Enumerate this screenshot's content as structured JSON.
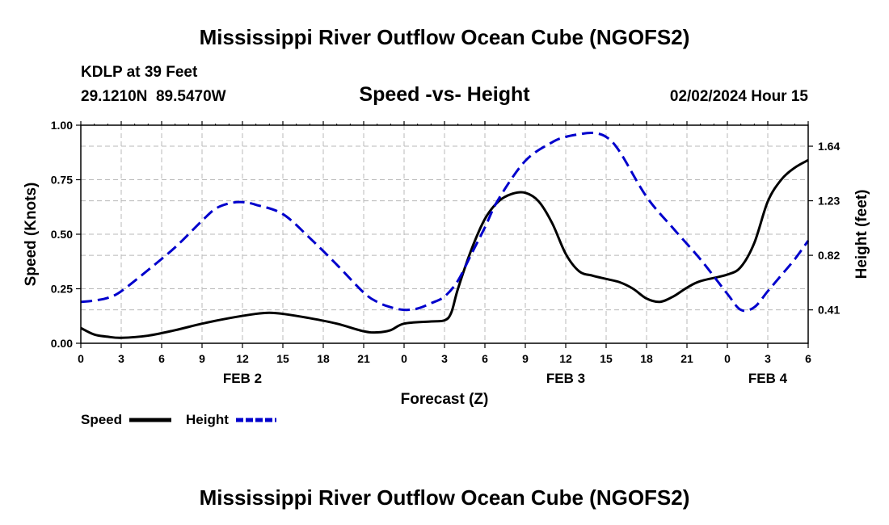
{
  "header": {
    "title": "Mississippi River Outflow Ocean Cube (NGOFS2)",
    "station": "KDLP at 39 Feet",
    "coords": "29.1210N  89.5470W",
    "subtitle": "Speed -vs- Height",
    "datetime": "02/02/2024 Hour 15"
  },
  "footer": {
    "title": "Mississippi River Outflow Ocean Cube (NGOFS2)"
  },
  "chart_data": {
    "type": "line",
    "title": "Speed -vs- Height",
    "xlabel": "Forecast (Z)",
    "ylabel": "Speed (Knots)",
    "ylabel_right": "Height (feet)",
    "x_unit": "forecast hours from FEB 2 00Z",
    "xlim": [
      0,
      54
    ],
    "ylim": [
      0,
      1
    ],
    "ylim_right": [
      0.159,
      1.798
    ],
    "grid": true,
    "x_ticks": [
      {
        "x": 0,
        "label": "0"
      },
      {
        "x": 3,
        "label": "3"
      },
      {
        "x": 6,
        "label": "6"
      },
      {
        "x": 9,
        "label": "9"
      },
      {
        "x": 12,
        "label": "12"
      },
      {
        "x": 15,
        "label": "15"
      },
      {
        "x": 18,
        "label": "18"
      },
      {
        "x": 21,
        "label": "21"
      },
      {
        "x": 24,
        "label": "0"
      },
      {
        "x": 27,
        "label": "3"
      },
      {
        "x": 30,
        "label": "6"
      },
      {
        "x": 33,
        "label": "9"
      },
      {
        "x": 36,
        "label": "12"
      },
      {
        "x": 39,
        "label": "15"
      },
      {
        "x": 42,
        "label": "18"
      },
      {
        "x": 45,
        "label": "21"
      },
      {
        "x": 48,
        "label": "0"
      },
      {
        "x": 51,
        "label": "3"
      },
      {
        "x": 54,
        "label": "6"
      }
    ],
    "y_ticks": [
      {
        "y": 0.0,
        "label": "0.00"
      },
      {
        "y": 0.25,
        "label": "0.25"
      },
      {
        "y": 0.5,
        "label": "0.50"
      },
      {
        "y": 0.75,
        "label": "0.75"
      },
      {
        "y": 1.0,
        "label": "1.00"
      }
    ],
    "y_ticks_right": [
      {
        "y": 0.41,
        "label": "0.41"
      },
      {
        "y": 0.82,
        "label": "0.82"
      },
      {
        "y": 1.23,
        "label": "1.23"
      },
      {
        "y": 1.64,
        "label": "1.64"
      }
    ],
    "day_labels": [
      {
        "x": 12,
        "label": "FEB 2"
      },
      {
        "x": 36,
        "label": "FEB 3"
      },
      {
        "x": 51,
        "label": "FEB 4"
      }
    ],
    "series": [
      {
        "name": "Speed",
        "axis": "left",
        "color": "#000000",
        "dash": "solid",
        "x": [
          0,
          1,
          2,
          3,
          5,
          7,
          9,
          11,
          13,
          14,
          15,
          17,
          19,
          21,
          22,
          23,
          24,
          26,
          27,
          27.5,
          28,
          29,
          30,
          31,
          32,
          33,
          34,
          35,
          36,
          37,
          38,
          39,
          40,
          41,
          42,
          43,
          44,
          45,
          46,
          48,
          49,
          50,
          51,
          52,
          53,
          54
        ],
        "values": [
          0.07,
          0.04,
          0.03,
          0.025,
          0.035,
          0.06,
          0.09,
          0.115,
          0.135,
          0.14,
          0.135,
          0.115,
          0.09,
          0.055,
          0.05,
          0.06,
          0.09,
          0.1,
          0.105,
          0.14,
          0.25,
          0.43,
          0.57,
          0.65,
          0.685,
          0.69,
          0.65,
          0.55,
          0.41,
          0.33,
          0.31,
          0.295,
          0.28,
          0.25,
          0.205,
          0.19,
          0.215,
          0.255,
          0.285,
          0.315,
          0.35,
          0.46,
          0.65,
          0.75,
          0.805,
          0.84
        ]
      },
      {
        "name": "Height",
        "axis": "right",
        "color": "#0000cc",
        "dash": "dashed",
        "x": [
          0,
          1,
          2,
          3,
          5,
          7,
          9,
          10,
          11,
          12,
          13,
          15,
          17,
          19,
          21,
          22,
          23,
          24,
          25,
          26,
          27,
          28,
          29,
          30,
          31,
          33,
          35,
          36,
          37,
          38,
          39,
          40,
          42,
          44,
          46,
          48,
          49,
          50,
          51,
          52,
          53,
          54
        ],
        "values": [
          0.47,
          0.48,
          0.5,
          0.55,
          0.71,
          0.88,
          1.08,
          1.17,
          1.21,
          1.22,
          1.2,
          1.13,
          0.95,
          0.75,
          0.54,
          0.47,
          0.43,
          0.41,
          0.42,
          0.46,
          0.51,
          0.63,
          0.83,
          1.03,
          1.24,
          1.53,
          1.67,
          1.71,
          1.73,
          1.74,
          1.71,
          1.6,
          1.26,
          1.02,
          0.79,
          0.53,
          0.41,
          0.43,
          0.55,
          0.67,
          0.79,
          0.93
        ]
      }
    ],
    "legend": [
      {
        "label": "Speed",
        "color": "#000000",
        "dash": "solid"
      },
      {
        "label": "Height",
        "color": "#0000cc",
        "dash": "dashed"
      }
    ],
    "legend_position": "bottom-left"
  }
}
